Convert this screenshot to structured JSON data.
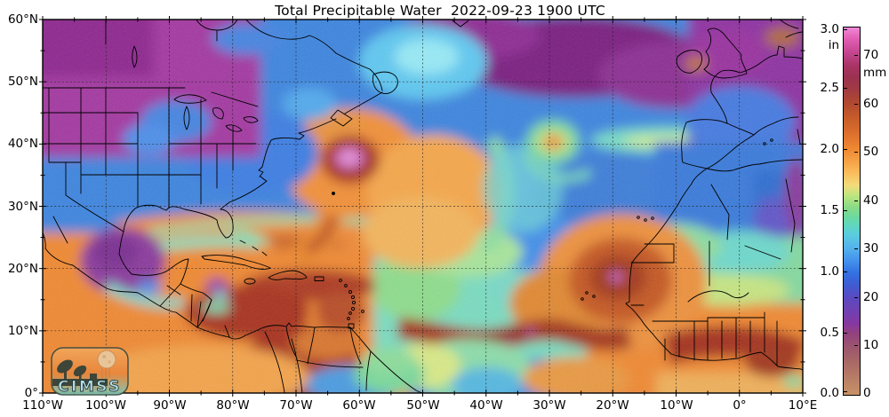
{
  "title": "Total Precipitable Water  2022-09-23 1900 UTC",
  "axes": {
    "x_ticks": [
      "110°W",
      "100°W",
      "90°W",
      "80°W",
      "70°W",
      "60°W",
      "50°W",
      "40°W",
      "30°W",
      "20°W",
      "10°W",
      "0°",
      "10°E"
    ],
    "y_ticks": [
      "60°N",
      "50°N",
      "40°N",
      "30°N",
      "20°N",
      "10°N",
      "0°"
    ]
  },
  "colorbar": {
    "inch_ticks": [
      "3.0",
      "2.5",
      "2.0",
      "1.5",
      "1.0",
      "0.5",
      "0.0"
    ],
    "inch_unit": "in",
    "mm_ticks": [
      "70",
      "60",
      "50",
      "40",
      "30",
      "20",
      "10",
      "0"
    ],
    "mm_unit": "mm"
  },
  "logo": {
    "text": "CIMSS"
  },
  "chart_data": {
    "type": "heatmap",
    "title": "Total Precipitable Water  2022-09-23 1900 UTC",
    "lon_range": [
      "110°W",
      "10°E"
    ],
    "lat_range": [
      "0°",
      "60°N"
    ],
    "gridline_spacing_deg": 10,
    "value_axis": {
      "inches": [
        0.0,
        3.0
      ],
      "mm": [
        0,
        76
      ]
    },
    "colormap": [
      {
        "value_in": 0.0,
        "color": "#c79267"
      },
      {
        "value_in": 0.4,
        "color": "#9c556e"
      },
      {
        "value_in": 0.5,
        "color": "#92427e"
      },
      {
        "value_in": 0.7,
        "color": "#6f41b2"
      },
      {
        "value_in": 0.9,
        "color": "#3f5cd2"
      },
      {
        "value_in": 1.0,
        "color": "#3372e2"
      },
      {
        "value_in": 1.2,
        "color": "#55b2ec"
      },
      {
        "value_in": 1.4,
        "color": "#60d6c2"
      },
      {
        "value_in": 1.55,
        "color": "#8ada86"
      },
      {
        "value_in": 1.75,
        "color": "#f2dc7a"
      },
      {
        "value_in": 2.0,
        "color": "#ef8a33"
      },
      {
        "value_in": 2.35,
        "color": "#c65c2a"
      },
      {
        "value_in": 2.5,
        "color": "#a03a44"
      },
      {
        "value_in": 2.75,
        "color": "#a83464"
      },
      {
        "value_in": 3.0,
        "color": "#f286d8"
      }
    ]
  }
}
